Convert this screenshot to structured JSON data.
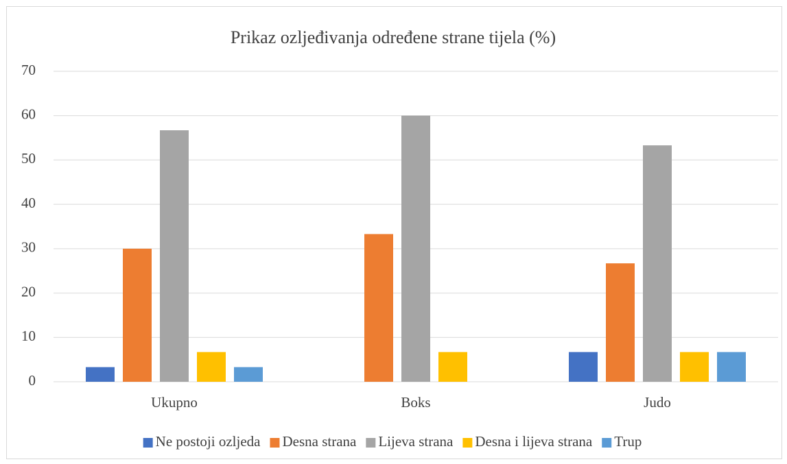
{
  "chart_data": {
    "type": "bar",
    "title": "Prikaz ozljeđivanja određene strane tijela (%)",
    "categories": [
      "Ukupno",
      "Boks",
      "Judo"
    ],
    "series": [
      {
        "name": "Ne postoji ozljeda",
        "color": "#4472c4",
        "values": [
          3.3,
          0,
          6.7
        ]
      },
      {
        "name": "Desna strana",
        "color": "#ed7d31",
        "values": [
          30,
          33.3,
          26.7
        ]
      },
      {
        "name": "Lijeva strana",
        "color": "#a5a5a5",
        "values": [
          56.7,
          60,
          53.3
        ]
      },
      {
        "name": "Desna i lijeva strana",
        "color": "#ffc000",
        "values": [
          6.7,
          6.7,
          6.7
        ]
      },
      {
        "name": "Trup",
        "color": "#5b9bd5",
        "values": [
          3.3,
          0,
          6.7
        ]
      }
    ],
    "ylim": [
      0,
      70
    ],
    "yticks": [
      0,
      10,
      20,
      30,
      40,
      50,
      60,
      70
    ],
    "grid": true,
    "legend": "bottom"
  }
}
